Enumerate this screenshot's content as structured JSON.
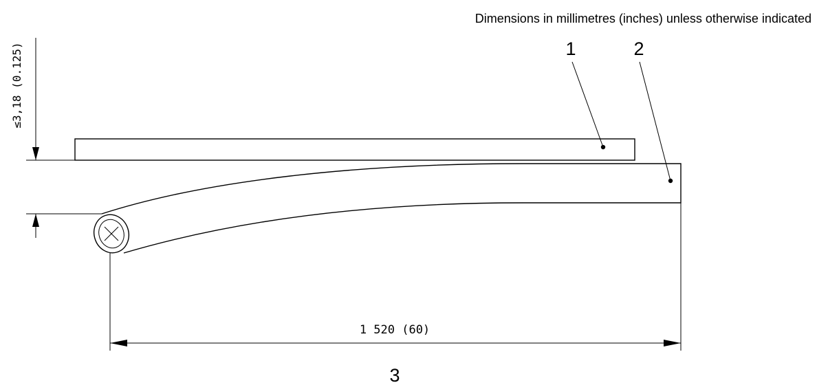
{
  "header": {
    "note": "Dimensions in millimetres (inches) unless otherwise indicated"
  },
  "callouts": {
    "item_1": "1",
    "item_2": "2",
    "item_3": "3"
  },
  "dimensions": {
    "drop_height": "≤3,18 (0.125)",
    "length": "1 520 (60)"
  }
}
